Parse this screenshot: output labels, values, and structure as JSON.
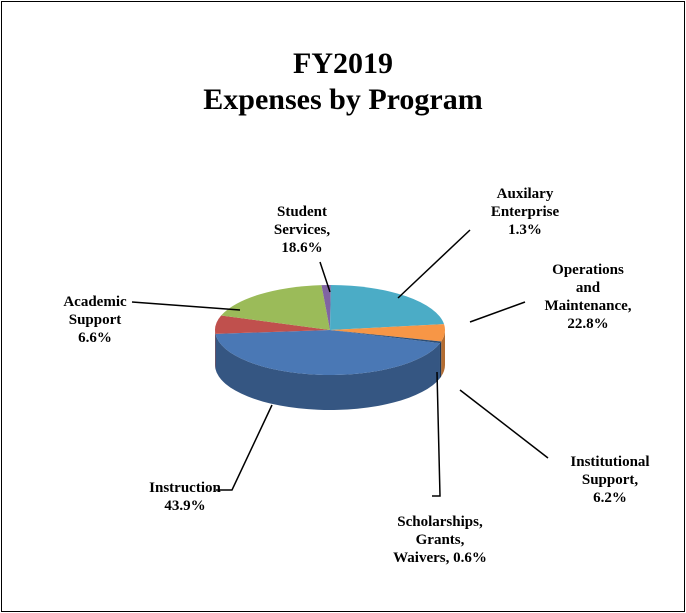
{
  "chart_data": {
    "type": "pie",
    "title": "FY2019\nExpenses by Program",
    "labels": [
      "Instruction\n43.9%",
      "Academic\nSupport\n6.6%",
      "Student\nServices,\n18.6%",
      "Auxilary\nEnterprise\n1.3%",
      "Operations and\nMaintenance,\n22.8%",
      "Institutional\nSupport, 6.2%",
      "Scholarships,\nGrants,\nWaivers, 0.6%"
    ],
    "values": [
      43.9,
      6.6,
      18.6,
      1.3,
      22.8,
      6.2,
      0.6
    ],
    "colors": [
      "#4a78b5",
      "#c0504d",
      "#9bbb59",
      "#8064a2",
      "#4bacc6",
      "#f79646",
      "#2c4d75"
    ]
  }
}
